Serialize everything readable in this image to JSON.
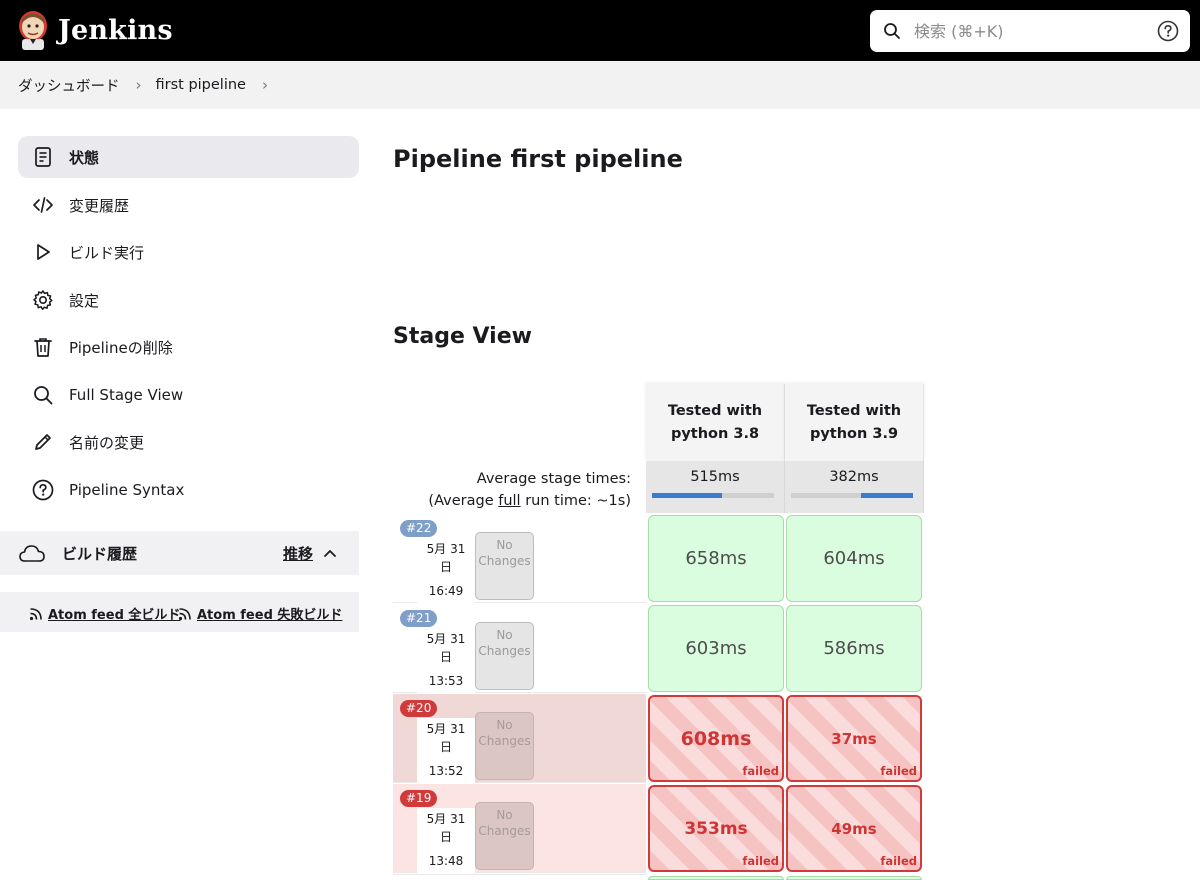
{
  "header": {
    "app_title": "Jenkins",
    "search_placeholder": "検索 (⌘+K)"
  },
  "breadcrumb": {
    "items": [
      "ダッシュボード",
      "first pipeline"
    ]
  },
  "sidebar": {
    "items": [
      {
        "label": "状態",
        "icon": "document-icon",
        "active": true
      },
      {
        "label": "変更履歴",
        "icon": "code-icon"
      },
      {
        "label": "ビルド実行",
        "icon": "play-icon"
      },
      {
        "label": "設定",
        "icon": "gear-icon"
      },
      {
        "label": "Pipelineの削除",
        "icon": "trash-icon"
      },
      {
        "label": "Full Stage View",
        "icon": "search-icon"
      },
      {
        "label": "名前の変更",
        "icon": "pencil-icon"
      },
      {
        "label": "Pipeline Syntax",
        "icon": "help-circle-icon"
      }
    ],
    "build_history": {
      "title": "ビルド履歴",
      "trend_label": "推移"
    },
    "feeds": {
      "all": "Atom feed 全ビルド",
      "failed": "Atom feed 失敗ビルド"
    }
  },
  "main": {
    "page_title": "Pipeline first pipeline",
    "stage_view_title": "Stage View",
    "stages": [
      "Tested with python 3.8",
      "Tested with python 3.9"
    ],
    "average": {
      "label_line1": "Average stage times:",
      "label_prefix": "(Average ",
      "label_link": "full",
      "label_suffix": " run time: ~1s)",
      "times": [
        "515ms",
        "382ms"
      ]
    },
    "builds": [
      {
        "number": "#22",
        "date": "5月 31 日",
        "time": "16:49",
        "changes": "No Changes",
        "status": "success",
        "cells": [
          {
            "value": "658ms"
          },
          {
            "value": "604ms"
          }
        ]
      },
      {
        "number": "#21",
        "date": "5月 31 日",
        "time": "13:53",
        "changes": "No Changes",
        "status": "success",
        "cells": [
          {
            "value": "603ms"
          },
          {
            "value": "586ms"
          }
        ]
      },
      {
        "number": "#20",
        "date": "5月 31 日",
        "time": "13:52",
        "changes": "No Changes",
        "status": "failed",
        "cells": [
          {
            "value": "608ms",
            "note": "failed"
          },
          {
            "value": "37ms",
            "note": "failed"
          }
        ]
      },
      {
        "number": "#19",
        "date": "5月 31 日",
        "time": "13:48",
        "changes": "No Changes",
        "status": "failed",
        "cells": [
          {
            "value": "353ms",
            "note": "failed"
          },
          {
            "value": "49ms",
            "note": "failed"
          }
        ]
      }
    ]
  }
}
